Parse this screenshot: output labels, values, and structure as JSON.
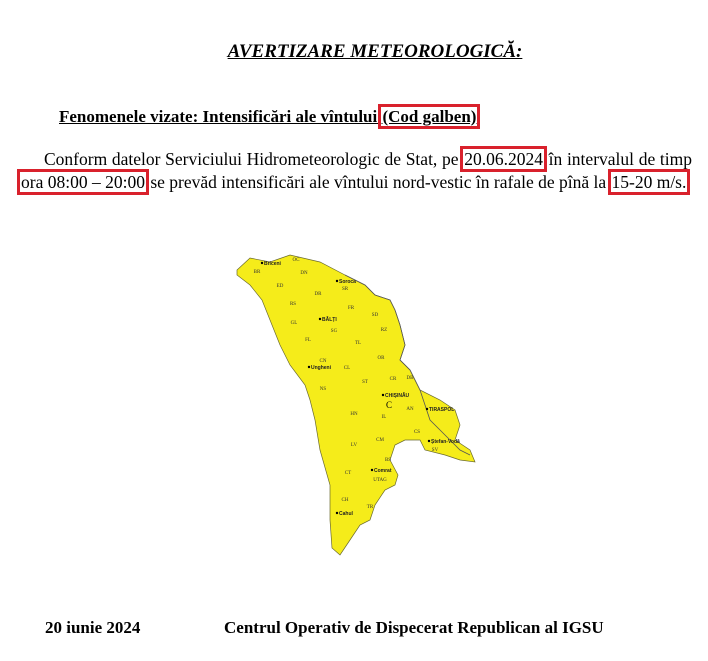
{
  "document": {
    "title": "AVERTIZARE METEOROLOGICĂ:",
    "phenomena_prefix": "Fenomenele vizate: Intensificări ale vîntului ",
    "phenomena_code": "(Cod galben)",
    "para_part1": "Conform datelor Serviciului Hidrometeorologic de Stat, pe ",
    "date": "20.06.2024",
    "para_part2": " în intervalul de timp ",
    "time_interval": "ora 08:00 – 20:00",
    "para_part3": "  se prevăd intensificări ale vîntului nord-vestic în rafale de pînă la ",
    "wind_speed": "15-20 m/s.",
    "highlight_color": "#d9212c",
    "map_fill_color": "#f5ec1a"
  },
  "map": {
    "districts": [
      "OC",
      "BR",
      "DN",
      "ED",
      "SR",
      "DR",
      "RS",
      "FR",
      "SD",
      "GL",
      "SG",
      "RZ",
      "FL",
      "TL",
      "CN",
      "OR",
      "CL",
      "CR",
      "DB",
      "NS",
      "ST",
      "AN",
      "HN",
      "IL",
      "CS",
      "CM",
      "SV",
      "LV",
      "BS",
      "CT",
      "UTAG",
      "CH",
      "TR"
    ],
    "cities": [
      "Briceni",
      "Soroca",
      "BĂLȚI",
      "Ungheni",
      "CHIȘINĂU",
      "C",
      "TIRASPOL",
      "Ștefan-Vodă",
      "Comrat",
      "Cahul"
    ]
  },
  "footer": {
    "date": "20 iunie 2024",
    "organization": "Centrul Operativ de Dispecerat Republican al IGSU"
  }
}
